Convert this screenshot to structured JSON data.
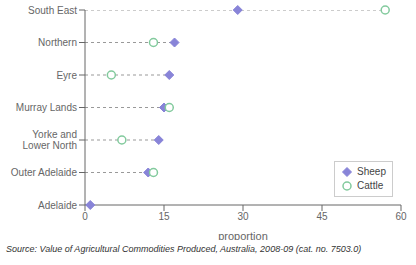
{
  "chart_data": {
    "type": "dot",
    "categories": [
      "South East",
      "Northern",
      "Eyre",
      "Murray Lands",
      "Yorke and\nLower North",
      "Outer Adelaide",
      "Adelaide"
    ],
    "series": [
      {
        "name": "Sheep",
        "color": "#8884d8",
        "marker": "diamond",
        "values": [
          29,
          17,
          16,
          15,
          14,
          12,
          1
        ]
      },
      {
        "name": "Cattle",
        "color": "#82ca9d",
        "marker": "open_circle",
        "values": [
          57,
          13,
          5,
          16,
          7,
          13,
          null
        ]
      }
    ],
    "xlabel": "proportion",
    "xlim": [
      0,
      60
    ],
    "xticks": [
      0,
      15,
      30,
      45,
      60
    ],
    "orientation": "horizontal",
    "grid": false,
    "legend": "lower right",
    "source": "Source: Value of Agricultural Commodities Produced, Australia, 2008-09 (cat. no. 7503.0)"
  }
}
